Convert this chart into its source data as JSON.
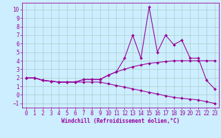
{
  "xlabel": "Windchill (Refroidissement éolien,°C)",
  "background_color": "#cceeff",
  "grid_color": "#aacccc",
  "line_color": "#990099",
  "x_data": [
    0,
    1,
    2,
    3,
    4,
    5,
    6,
    7,
    8,
    9,
    10,
    11,
    12,
    13,
    14,
    15,
    16,
    17,
    18,
    19,
    20,
    21,
    22,
    23
  ],
  "line1": [
    2.0,
    2.0,
    1.7,
    1.6,
    1.5,
    1.5,
    1.5,
    1.8,
    1.8,
    1.8,
    2.3,
    2.7,
    4.3,
    7.0,
    4.3,
    10.3,
    5.0,
    7.0,
    5.9,
    6.4,
    4.3,
    4.3,
    1.7,
    0.7
  ],
  "line2": [
    2.0,
    2.0,
    1.7,
    1.6,
    1.5,
    1.5,
    1.5,
    1.8,
    1.8,
    1.8,
    2.3,
    2.7,
    3.0,
    3.3,
    3.5,
    3.7,
    3.8,
    3.9,
    4.0,
    4.0,
    4.0,
    4.0,
    4.0,
    4.0
  ],
  "line3": [
    2.0,
    2.0,
    1.7,
    1.6,
    1.5,
    1.5,
    1.5,
    1.5,
    1.5,
    1.5,
    1.3,
    1.1,
    0.9,
    0.7,
    0.5,
    0.3,
    0.1,
    -0.1,
    -0.3,
    -0.4,
    -0.5,
    -0.6,
    -0.8,
    -1.0
  ],
  "ylim": [
    -1.5,
    10.8
  ],
  "xlim": [
    -0.5,
    23.5
  ],
  "yticks": [
    -1,
    0,
    1,
    2,
    3,
    4,
    5,
    6,
    7,
    8,
    9,
    10
  ],
  "xticks": [
    0,
    1,
    2,
    3,
    4,
    5,
    6,
    7,
    8,
    9,
    10,
    11,
    12,
    13,
    14,
    15,
    16,
    17,
    18,
    19,
    20,
    21,
    22,
    23
  ],
  "tick_fontsize": 5.5,
  "xlabel_fontsize": 5.5,
  "marker_size": 2.0,
  "line_width": 0.8
}
